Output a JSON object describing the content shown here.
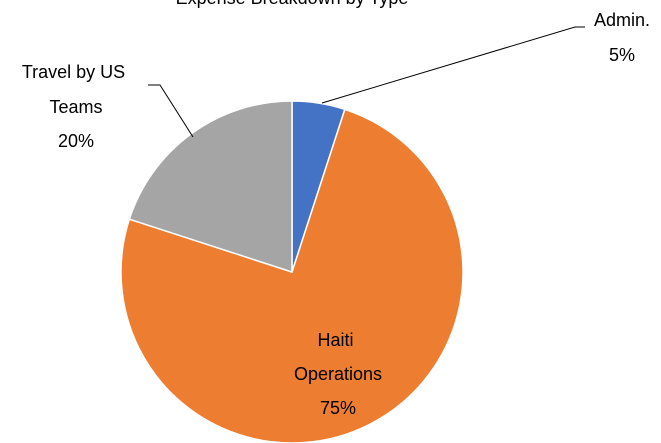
{
  "chart_data": {
    "type": "pie",
    "title": "Expense Breakdown by Type",
    "slices": [
      {
        "label": "Admin.",
        "value": 5,
        "pct_label": "5%",
        "color": "#4472C4"
      },
      {
        "label": "Haiti Operations",
        "value": 75,
        "pct_label": "75%",
        "color": "#ED7D31"
      },
      {
        "label": "Travel by US Teams",
        "value": 20,
        "pct_label": "20%",
        "color": "#A5A5A5"
      }
    ],
    "legend": "none",
    "data_labels": "category and percentage"
  }
}
